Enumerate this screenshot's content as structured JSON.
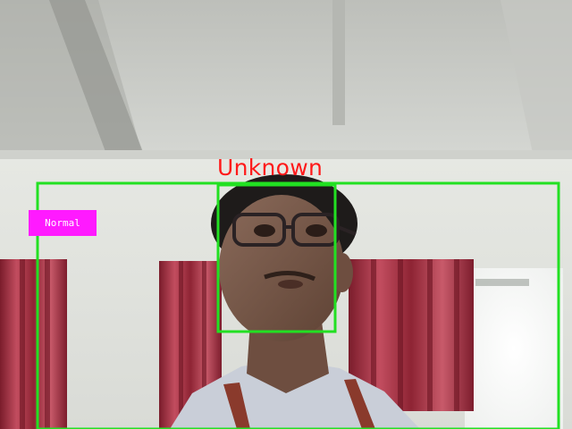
{
  "detection": {
    "face_label": "Unknown",
    "status_label": "Normal",
    "box_color": "#22e022",
    "label_color": "#ff1a1a",
    "badge_color": "#ff1aff"
  }
}
